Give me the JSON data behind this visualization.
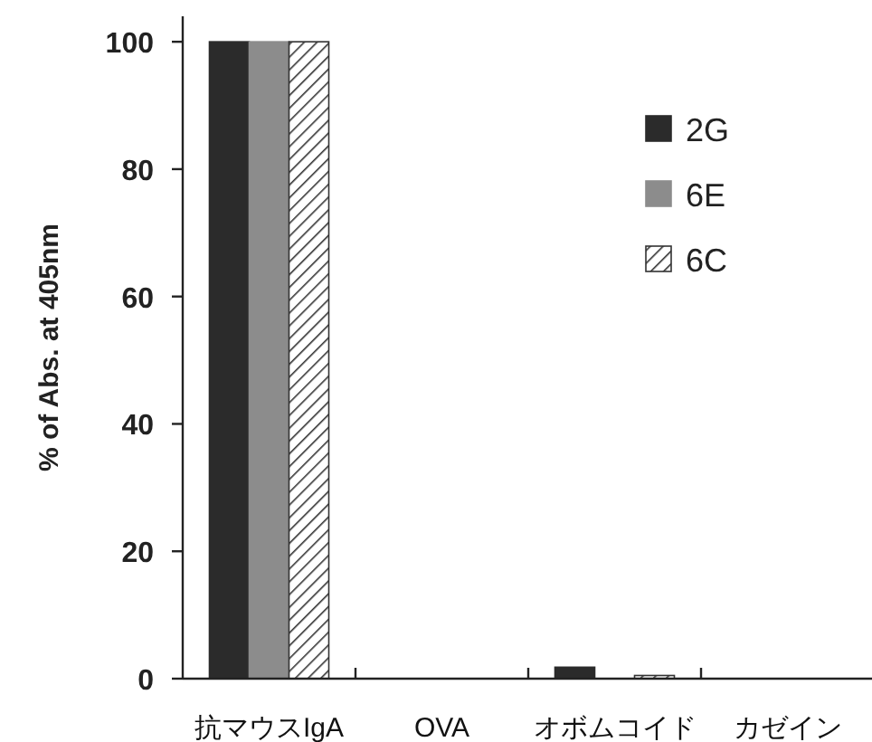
{
  "chart_data": {
    "type": "bar",
    "ylabel": "% of Abs. at 405nm",
    "categories": [
      "抗マウスIgA",
      "OVA",
      "オボムコイド",
      "カゼイン"
    ],
    "series": [
      {
        "name": "2G",
        "color": "#2b2b2b",
        "values": [
          100,
          0,
          1.8,
          0
        ]
      },
      {
        "name": "6E",
        "color": "#8c8c8c",
        "values": [
          100,
          0,
          0,
          0
        ]
      },
      {
        "name": "6C",
        "color": "#333333",
        "values": [
          100,
          0,
          0.5,
          0
        ]
      }
    ],
    "ylim": [
      0,
      104
    ],
    "yticks": [
      0,
      20,
      40,
      60,
      80,
      100
    ],
    "legend": "top right",
    "grid": false
  }
}
